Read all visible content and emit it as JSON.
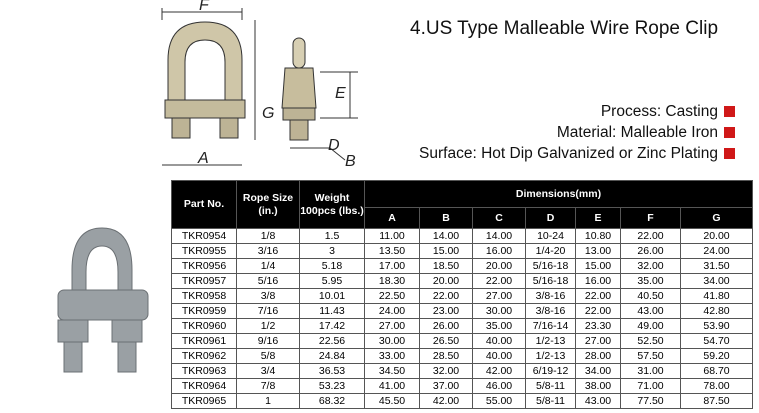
{
  "header": {
    "title": "4.US Type Malleable Wire Rope Clip"
  },
  "specs": [
    "Process:  Casting",
    "Material: Malleable Iron",
    "Surface: Hot Dip Galvanized or Zinc Plating"
  ],
  "diagram": {
    "labels": {
      "F": "F",
      "E": "E",
      "G": "G",
      "D": "D",
      "A": "A",
      "B": "B"
    }
  },
  "table": {
    "headers": [
      "Part No.",
      "Rope Size (in.)",
      "Weight 100pcs (lbs.)"
    ],
    "group_header": "Dimensions(mm)",
    "dim_headers": [
      "A",
      "B",
      "C",
      "D",
      "E",
      "F",
      "G"
    ],
    "rows": [
      [
        "TKR0954",
        "1/8",
        "1.5",
        "11.00",
        "14.00",
        "14.00",
        "10-24",
        "10.80",
        "22.00",
        "20.00"
      ],
      [
        "TKR0955",
        "3/16",
        "3",
        "13.50",
        "15.00",
        "16.00",
        "1/4-20",
        "13.00",
        "26.00",
        "24.00"
      ],
      [
        "TKR0956",
        "1/4",
        "5.18",
        "17.00",
        "18.50",
        "20.00",
        "5/16-18",
        "15.00",
        "32.00",
        "31.50"
      ],
      [
        "TKR0957",
        "5/16",
        "5.95",
        "18.30",
        "20.00",
        "22.00",
        "5/16-18",
        "16.00",
        "35.00",
        "34.00"
      ],
      [
        "TKR0958",
        "3/8",
        "10.01",
        "22.50",
        "22.00",
        "27.00",
        "3/8-16",
        "22.00",
        "40.50",
        "41.80"
      ],
      [
        "TKR0959",
        "7/16",
        "11.43",
        "24.00",
        "23.00",
        "30.00",
        "3/8-16",
        "22.00",
        "43.00",
        "42.80"
      ],
      [
        "TKR0960",
        "1/2",
        "17.42",
        "27.00",
        "26.00",
        "35.00",
        "7/16-14",
        "23.30",
        "49.00",
        "53.90"
      ],
      [
        "TKR0961",
        "9/16",
        "22.56",
        "30.00",
        "26.50",
        "40.00",
        "1/2-13",
        "27.00",
        "52.50",
        "54.70"
      ],
      [
        "TKR0962",
        "5/8",
        "24.84",
        "33.00",
        "28.50",
        "40.00",
        "1/2-13",
        "28.00",
        "57.50",
        "59.20"
      ],
      [
        "TKR0963",
        "3/4",
        "36.53",
        "34.50",
        "32.00",
        "42.00",
        "6/19-12",
        "34.00",
        "31.00",
        "68.70"
      ],
      [
        "TKR0964",
        "7/8",
        "53.23",
        "41.00",
        "37.00",
        "46.00",
        "5/8-11",
        "38.00",
        "71.00",
        "78.00"
      ],
      [
        "TKR0965",
        "1",
        "68.32",
        "45.50",
        "42.00",
        "55.00",
        "5/8-11",
        "43.00",
        "77.50",
        "87.50"
      ]
    ]
  }
}
